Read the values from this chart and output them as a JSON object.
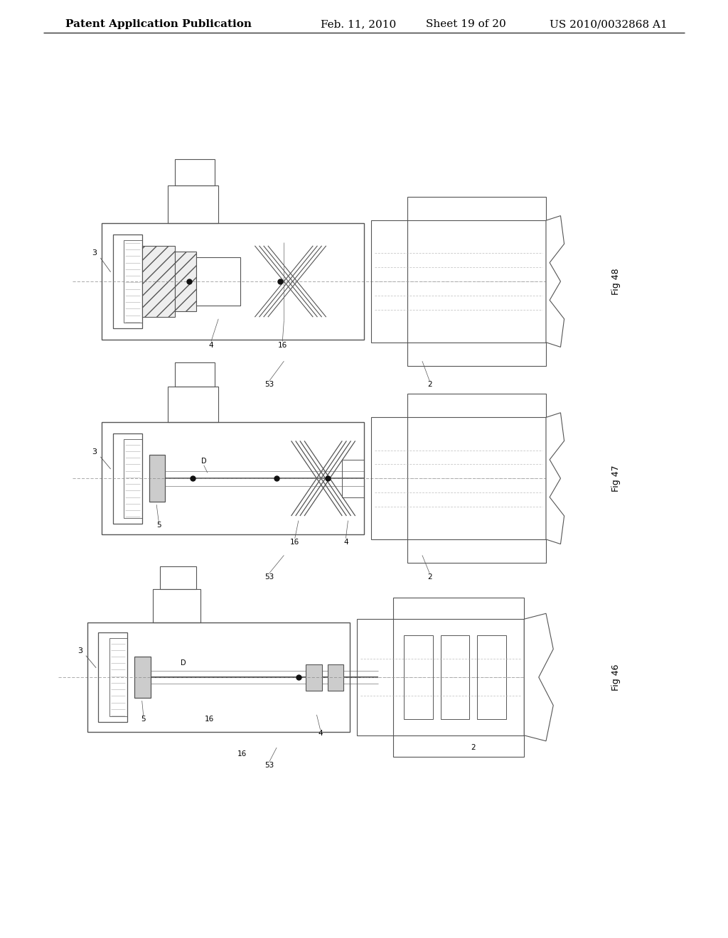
{
  "background_color": "#ffffff",
  "header_text": "Patent Application Publication",
  "header_date": "Feb. 11, 2010",
  "header_sheet": "Sheet 19 of 20",
  "header_patent": "US 2010/0032868 A1",
  "header_fontsize": 11,
  "line_color": "#555555",
  "thick_line": 1.2,
  "thin_line": 0.7,
  "dot_color": "#111111"
}
